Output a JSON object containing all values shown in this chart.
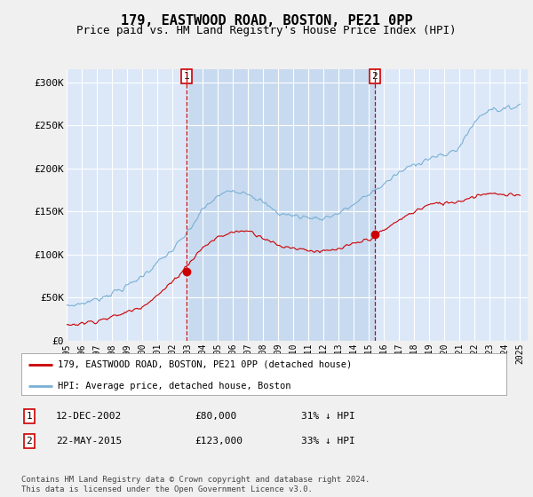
{
  "title": "179, EASTWOOD ROAD, BOSTON, PE21 0PP",
  "subtitle": "Price paid vs. HM Land Registry's House Price Index (HPI)",
  "title_fontsize": 11,
  "subtitle_fontsize": 9,
  "ylabel_ticks": [
    "£0",
    "£50K",
    "£100K",
    "£150K",
    "£200K",
    "£250K",
    "£300K"
  ],
  "ytick_values": [
    0,
    50000,
    100000,
    150000,
    200000,
    250000,
    300000
  ],
  "ylim": [
    0,
    315000
  ],
  "xlim_start": 1995.0,
  "xlim_end": 2025.5,
  "fig_bg_color": "#f0f0f0",
  "plot_bg_color": "#dce8f8",
  "highlight_bg_color": "#c8daef",
  "grid_color": "#ffffff",
  "hpi_color": "#7ab0d4",
  "price_color": "#cc0000",
  "purchase1_x": 2002.95,
  "purchase1_y": 80000,
  "purchase2_x": 2015.38,
  "purchase2_y": 123000,
  "legend_entries": [
    "179, EASTWOOD ROAD, BOSTON, PE21 0PP (detached house)",
    "HPI: Average price, detached house, Boston"
  ],
  "table_rows": [
    [
      "1",
      "12-DEC-2002",
      "£80,000",
      "31% ↓ HPI"
    ],
    [
      "2",
      "22-MAY-2015",
      "£123,000",
      "33% ↓ HPI"
    ]
  ],
  "footnote": "Contains HM Land Registry data © Crown copyright and database right 2024.\nThis data is licensed under the Open Government Licence v3.0.",
  "xtick_years": [
    1995,
    1996,
    1997,
    1998,
    1999,
    2000,
    2001,
    2002,
    2003,
    2004,
    2005,
    2006,
    2007,
    2008,
    2009,
    2010,
    2011,
    2012,
    2013,
    2014,
    2015,
    2016,
    2017,
    2018,
    2019,
    2020,
    2021,
    2022,
    2023,
    2024,
    2025
  ]
}
